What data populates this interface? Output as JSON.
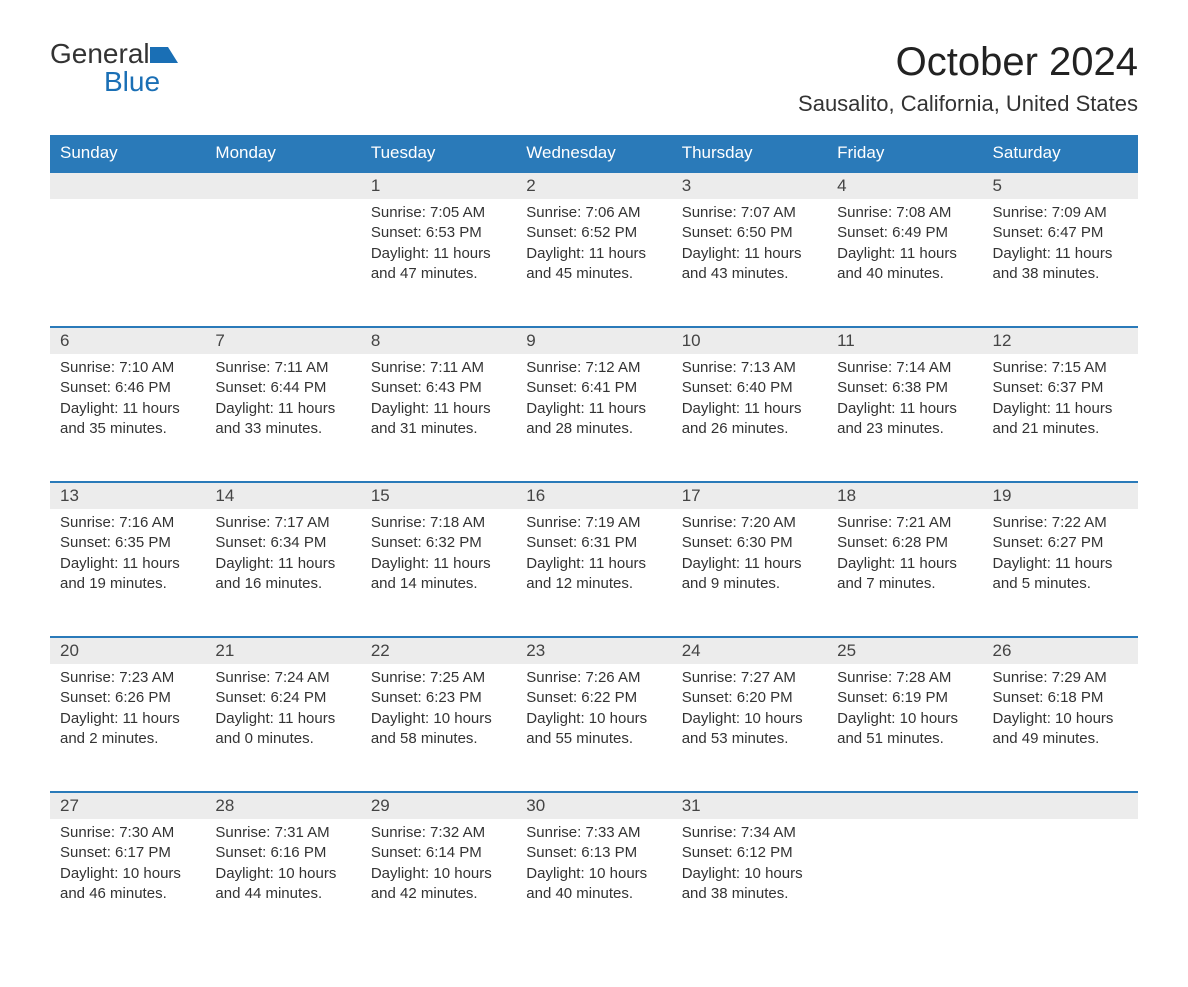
{
  "brand": {
    "name1": "General",
    "name2": "Blue"
  },
  "title": "October 2024",
  "location": "Sausalito, California, United States",
  "colors": {
    "header_bg": "#2a7ab9",
    "header_text": "#ffffff",
    "daynum_bg": "#ececec",
    "border_top": "#2a7ab9",
    "text": "#333333",
    "brand_blue": "#1a6fb5"
  },
  "typography": {
    "title_fontsize": 40,
    "location_fontsize": 22,
    "th_fontsize": 17,
    "daynum_fontsize": 17,
    "cell_fontsize": 15
  },
  "dayNames": [
    "Sunday",
    "Monday",
    "Tuesday",
    "Wednesday",
    "Thursday",
    "Friday",
    "Saturday"
  ],
  "weeks": [
    [
      null,
      null,
      {
        "n": "1",
        "sr": "Sunrise: 7:05 AM",
        "ss": "Sunset: 6:53 PM",
        "dl": "Daylight: 11 hours and 47 minutes."
      },
      {
        "n": "2",
        "sr": "Sunrise: 7:06 AM",
        "ss": "Sunset: 6:52 PM",
        "dl": "Daylight: 11 hours and 45 minutes."
      },
      {
        "n": "3",
        "sr": "Sunrise: 7:07 AM",
        "ss": "Sunset: 6:50 PM",
        "dl": "Daylight: 11 hours and 43 minutes."
      },
      {
        "n": "4",
        "sr": "Sunrise: 7:08 AM",
        "ss": "Sunset: 6:49 PM",
        "dl": "Daylight: 11 hours and 40 minutes."
      },
      {
        "n": "5",
        "sr": "Sunrise: 7:09 AM",
        "ss": "Sunset: 6:47 PM",
        "dl": "Daylight: 11 hours and 38 minutes."
      }
    ],
    [
      {
        "n": "6",
        "sr": "Sunrise: 7:10 AM",
        "ss": "Sunset: 6:46 PM",
        "dl": "Daylight: 11 hours and 35 minutes."
      },
      {
        "n": "7",
        "sr": "Sunrise: 7:11 AM",
        "ss": "Sunset: 6:44 PM",
        "dl": "Daylight: 11 hours and 33 minutes."
      },
      {
        "n": "8",
        "sr": "Sunrise: 7:11 AM",
        "ss": "Sunset: 6:43 PM",
        "dl": "Daylight: 11 hours and 31 minutes."
      },
      {
        "n": "9",
        "sr": "Sunrise: 7:12 AM",
        "ss": "Sunset: 6:41 PM",
        "dl": "Daylight: 11 hours and 28 minutes."
      },
      {
        "n": "10",
        "sr": "Sunrise: 7:13 AM",
        "ss": "Sunset: 6:40 PM",
        "dl": "Daylight: 11 hours and 26 minutes."
      },
      {
        "n": "11",
        "sr": "Sunrise: 7:14 AM",
        "ss": "Sunset: 6:38 PM",
        "dl": "Daylight: 11 hours and 23 minutes."
      },
      {
        "n": "12",
        "sr": "Sunrise: 7:15 AM",
        "ss": "Sunset: 6:37 PM",
        "dl": "Daylight: 11 hours and 21 minutes."
      }
    ],
    [
      {
        "n": "13",
        "sr": "Sunrise: 7:16 AM",
        "ss": "Sunset: 6:35 PM",
        "dl": "Daylight: 11 hours and 19 minutes."
      },
      {
        "n": "14",
        "sr": "Sunrise: 7:17 AM",
        "ss": "Sunset: 6:34 PM",
        "dl": "Daylight: 11 hours and 16 minutes."
      },
      {
        "n": "15",
        "sr": "Sunrise: 7:18 AM",
        "ss": "Sunset: 6:32 PM",
        "dl": "Daylight: 11 hours and 14 minutes."
      },
      {
        "n": "16",
        "sr": "Sunrise: 7:19 AM",
        "ss": "Sunset: 6:31 PM",
        "dl": "Daylight: 11 hours and 12 minutes."
      },
      {
        "n": "17",
        "sr": "Sunrise: 7:20 AM",
        "ss": "Sunset: 6:30 PM",
        "dl": "Daylight: 11 hours and 9 minutes."
      },
      {
        "n": "18",
        "sr": "Sunrise: 7:21 AM",
        "ss": "Sunset: 6:28 PM",
        "dl": "Daylight: 11 hours and 7 minutes."
      },
      {
        "n": "19",
        "sr": "Sunrise: 7:22 AM",
        "ss": "Sunset: 6:27 PM",
        "dl": "Daylight: 11 hours and 5 minutes."
      }
    ],
    [
      {
        "n": "20",
        "sr": "Sunrise: 7:23 AM",
        "ss": "Sunset: 6:26 PM",
        "dl": "Daylight: 11 hours and 2 minutes."
      },
      {
        "n": "21",
        "sr": "Sunrise: 7:24 AM",
        "ss": "Sunset: 6:24 PM",
        "dl": "Daylight: 11 hours and 0 minutes."
      },
      {
        "n": "22",
        "sr": "Sunrise: 7:25 AM",
        "ss": "Sunset: 6:23 PM",
        "dl": "Daylight: 10 hours and 58 minutes."
      },
      {
        "n": "23",
        "sr": "Sunrise: 7:26 AM",
        "ss": "Sunset: 6:22 PM",
        "dl": "Daylight: 10 hours and 55 minutes."
      },
      {
        "n": "24",
        "sr": "Sunrise: 7:27 AM",
        "ss": "Sunset: 6:20 PM",
        "dl": "Daylight: 10 hours and 53 minutes."
      },
      {
        "n": "25",
        "sr": "Sunrise: 7:28 AM",
        "ss": "Sunset: 6:19 PM",
        "dl": "Daylight: 10 hours and 51 minutes."
      },
      {
        "n": "26",
        "sr": "Sunrise: 7:29 AM",
        "ss": "Sunset: 6:18 PM",
        "dl": "Daylight: 10 hours and 49 minutes."
      }
    ],
    [
      {
        "n": "27",
        "sr": "Sunrise: 7:30 AM",
        "ss": "Sunset: 6:17 PM",
        "dl": "Daylight: 10 hours and 46 minutes."
      },
      {
        "n": "28",
        "sr": "Sunrise: 7:31 AM",
        "ss": "Sunset: 6:16 PM",
        "dl": "Daylight: 10 hours and 44 minutes."
      },
      {
        "n": "29",
        "sr": "Sunrise: 7:32 AM",
        "ss": "Sunset: 6:14 PM",
        "dl": "Daylight: 10 hours and 42 minutes."
      },
      {
        "n": "30",
        "sr": "Sunrise: 7:33 AM",
        "ss": "Sunset: 6:13 PM",
        "dl": "Daylight: 10 hours and 40 minutes."
      },
      {
        "n": "31",
        "sr": "Sunrise: 7:34 AM",
        "ss": "Sunset: 6:12 PM",
        "dl": "Daylight: 10 hours and 38 minutes."
      },
      null,
      null
    ]
  ]
}
